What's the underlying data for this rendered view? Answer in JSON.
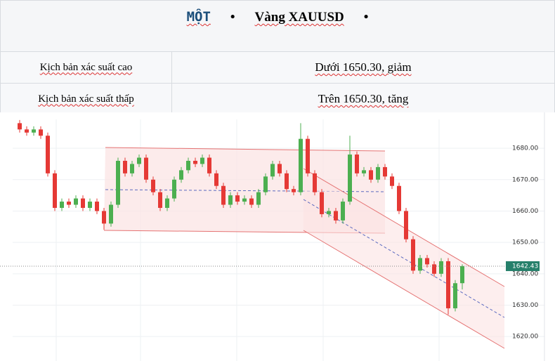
{
  "header": {
    "title_parts": [
      "MỘT",
      "•",
      "Vàng XAUUSD",
      "•"
    ]
  },
  "table": {
    "rows": [
      [
        "Kịch bản xác suất cao",
        "Dưới 1650.30, giảm"
      ],
      [
        "Kịch bản xác suất thấp",
        "Trên 1650.30, tăng"
      ]
    ]
  },
  "chart_data": {
    "type": "candlestick",
    "up_color": "#4caf50",
    "down_color": "#e53935",
    "open": [
      1688,
      1686,
      1685,
      1686,
      1684,
      1672,
      1661,
      1663,
      1662,
      1664,
      1661,
      1663,
      1660,
      1656,
      1662,
      1676,
      1672,
      1675,
      1677,
      1670,
      1666,
      1661,
      1664,
      1670,
      1673,
      1676,
      1675,
      1677,
      1672,
      1668,
      1662,
      1665,
      1663,
      1664,
      1662,
      1666,
      1671,
      1675,
      1672,
      1667,
      1666,
      1683,
      1672,
      1666,
      1659,
      1660,
      1657,
      1663,
      1678,
      1672,
      1673,
      1670,
      1674,
      1671,
      1668,
      1660,
      1651,
      1641,
      1645,
      1643,
      1640,
      1644,
      1629,
      1637
    ],
    "high": [
      1689,
      1687,
      1687,
      1687,
      1685,
      1673,
      1664,
      1664,
      1665,
      1665,
      1664,
      1664,
      1661,
      1663,
      1677,
      1677,
      1676,
      1678,
      1678,
      1671,
      1667,
      1665,
      1671,
      1674,
      1677,
      1677,
      1678,
      1678,
      1673,
      1669,
      1666,
      1666,
      1665,
      1665,
      1667,
      1672,
      1676,
      1676,
      1673,
      1668,
      1688,
      1684,
      1673,
      1667,
      1661,
      1661,
      1664,
      1684,
      1679,
      1674,
      1674,
      1675,
      1675,
      1672,
      1669,
      1661,
      1652,
      1646,
      1646,
      1644,
      1645,
      1645,
      1638,
      1643
    ],
    "low": [
      1685,
      1684,
      1684,
      1683,
      1671,
      1660,
      1660,
      1661,
      1661,
      1660,
      1660,
      1659,
      1654,
      1655,
      1661,
      1671,
      1671,
      1674,
      1669,
      1665,
      1660,
      1660,
      1663,
      1669,
      1672,
      1674,
      1674,
      1671,
      1667,
      1661,
      1661,
      1662,
      1662,
      1661,
      1661,
      1665,
      1670,
      1671,
      1666,
      1665,
      1665,
      1671,
      1665,
      1658,
      1658,
      1656,
      1656,
      1662,
      1671,
      1671,
      1669,
      1669,
      1670,
      1667,
      1659,
      1650,
      1640,
      1640,
      1642,
      1639,
      1639,
      1627,
      1628,
      1635
    ],
    "close": [
      1686,
      1685,
      1686,
      1684,
      1672,
      1661,
      1663,
      1662,
      1664,
      1661,
      1663,
      1660,
      1656,
      1662,
      1676,
      1672,
      1675,
      1677,
      1670,
      1666,
      1661,
      1664,
      1670,
      1673,
      1676,
      1675,
      1677,
      1672,
      1668,
      1662,
      1665,
      1663,
      1664,
      1662,
      1666,
      1671,
      1675,
      1672,
      1667,
      1666,
      1683,
      1672,
      1666,
      1659,
      1660,
      1657,
      1663,
      1678,
      1672,
      1673,
      1670,
      1674,
      1671,
      1668,
      1660,
      1651,
      1641,
      1645,
      1643,
      1640,
      1644,
      1629,
      1637,
      1642.43
    ],
    "ylim": [
      1613.1,
      1689.2
    ],
    "yticks": [
      {
        "value": 1620,
        "label": "1620.00"
      },
      {
        "value": 1630,
        "label": "1630.00"
      },
      {
        "value": 1640,
        "label": "1640.00"
      },
      {
        "value": 1650,
        "label": "1650.00"
      },
      {
        "value": 1660,
        "label": "1660.00"
      },
      {
        "value": 1670,
        "label": "1670.00"
      },
      {
        "value": 1680,
        "label": "1680.00"
      }
    ],
    "last_price": 1642.43,
    "grid": true
  }
}
